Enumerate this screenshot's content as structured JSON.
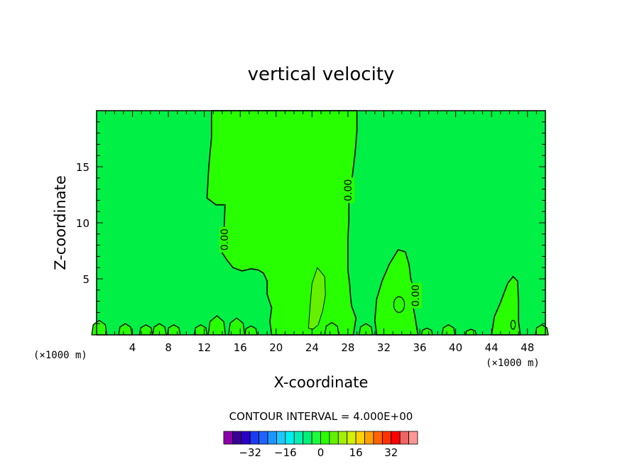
{
  "chart_data": {
    "type": "heatmap",
    "title": "vertical velocity",
    "xlabel": "X-coordinate",
    "ylabel": "Z-coordinate",
    "x_unit_left": "(×1000 m)",
    "x_unit_right": "(×1000 m)",
    "xlim": [
      0,
      50
    ],
    "ylim": [
      0,
      20
    ],
    "x_ticks": [
      4,
      8,
      12,
      16,
      20,
      24,
      28,
      32,
      36,
      40,
      44,
      48
    ],
    "y_ticks": [
      5,
      10,
      15
    ],
    "contour_interval_text": "CONTOUR INTERVAL = 4.000E+00",
    "contour_labels": [
      {
        "text": "0.00",
        "x": 14.3,
        "z": 8.5
      },
      {
        "text": "0.00",
        "x": 28.1,
        "z": 12.9
      },
      {
        "text": "0.00",
        "x": 35.6,
        "z": 3.5
      }
    ],
    "colorbar": {
      "colors": [
        "#8b00a8",
        "#3a0096",
        "#2a00c8",
        "#1a3cf0",
        "#1e64ff",
        "#1e96ff",
        "#1ec8ff",
        "#00f0f0",
        "#00f0b4",
        "#00f078",
        "#1efa3c",
        "#28ff00",
        "#64f000",
        "#a0f000",
        "#d2f000",
        "#ffd200",
        "#ffa000",
        "#ff6400",
        "#ff3200",
        "#ff0000",
        "#f06464",
        "#ff9696"
      ],
      "tick_labels": [
        {
          "text": "−32",
          "value": -32
        },
        {
          "text": "−16",
          "value": -16
        },
        {
          "text": "0",
          "value": 0
        },
        {
          "text": "16",
          "value": 16
        },
        {
          "text": "32",
          "value": 32
        }
      ],
      "min": -44,
      "max": 44
    },
    "field_colors": {
      "background": "#00f046",
      "near_zero_positive": "#28ff00",
      "weak_positive": "#64f000"
    }
  }
}
